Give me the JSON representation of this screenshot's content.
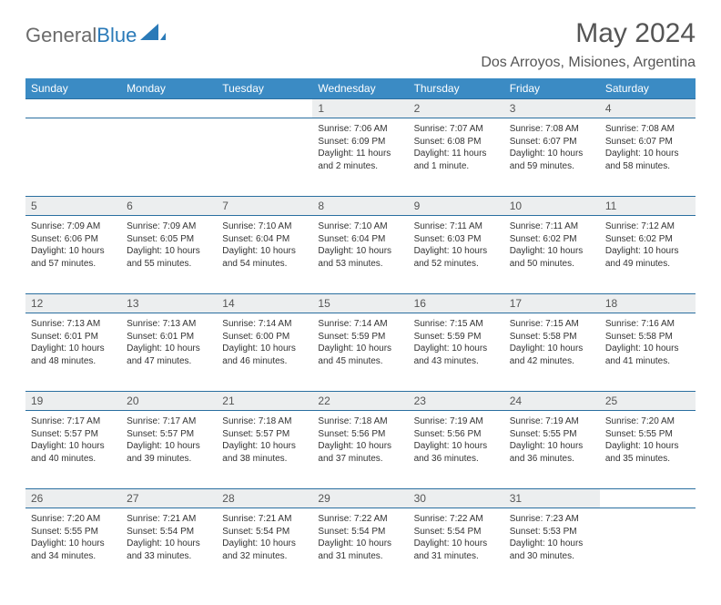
{
  "brand": {
    "part1": "General",
    "part2": "Blue"
  },
  "title": "May 2024",
  "location": "Dos Arroyos, Misiones, Argentina",
  "dayNames": [
    "Sunday",
    "Monday",
    "Tuesday",
    "Wednesday",
    "Thursday",
    "Friday",
    "Saturday"
  ],
  "colors": {
    "header_bg": "#3b8bc4",
    "header_text": "#ffffff",
    "daynum_bg": "#eceeef",
    "border": "#2a6fa0",
    "brand_gray": "#6b6b6b",
    "brand_blue": "#2a7ab8",
    "body_text": "#333333"
  },
  "firstWeekday": 3,
  "days": [
    {
      "n": 1,
      "sr": "7:06 AM",
      "ss": "6:09 PM",
      "dl": "11 hours and 2 minutes."
    },
    {
      "n": 2,
      "sr": "7:07 AM",
      "ss": "6:08 PM",
      "dl": "11 hours and 1 minute."
    },
    {
      "n": 3,
      "sr": "7:08 AM",
      "ss": "6:07 PM",
      "dl": "10 hours and 59 minutes."
    },
    {
      "n": 4,
      "sr": "7:08 AM",
      "ss": "6:07 PM",
      "dl": "10 hours and 58 minutes."
    },
    {
      "n": 5,
      "sr": "7:09 AM",
      "ss": "6:06 PM",
      "dl": "10 hours and 57 minutes."
    },
    {
      "n": 6,
      "sr": "7:09 AM",
      "ss": "6:05 PM",
      "dl": "10 hours and 55 minutes."
    },
    {
      "n": 7,
      "sr": "7:10 AM",
      "ss": "6:04 PM",
      "dl": "10 hours and 54 minutes."
    },
    {
      "n": 8,
      "sr": "7:10 AM",
      "ss": "6:04 PM",
      "dl": "10 hours and 53 minutes."
    },
    {
      "n": 9,
      "sr": "7:11 AM",
      "ss": "6:03 PM",
      "dl": "10 hours and 52 minutes."
    },
    {
      "n": 10,
      "sr": "7:11 AM",
      "ss": "6:02 PM",
      "dl": "10 hours and 50 minutes."
    },
    {
      "n": 11,
      "sr": "7:12 AM",
      "ss": "6:02 PM",
      "dl": "10 hours and 49 minutes."
    },
    {
      "n": 12,
      "sr": "7:13 AM",
      "ss": "6:01 PM",
      "dl": "10 hours and 48 minutes."
    },
    {
      "n": 13,
      "sr": "7:13 AM",
      "ss": "6:01 PM",
      "dl": "10 hours and 47 minutes."
    },
    {
      "n": 14,
      "sr": "7:14 AM",
      "ss": "6:00 PM",
      "dl": "10 hours and 46 minutes."
    },
    {
      "n": 15,
      "sr": "7:14 AM",
      "ss": "5:59 PM",
      "dl": "10 hours and 45 minutes."
    },
    {
      "n": 16,
      "sr": "7:15 AM",
      "ss": "5:59 PM",
      "dl": "10 hours and 43 minutes."
    },
    {
      "n": 17,
      "sr": "7:15 AM",
      "ss": "5:58 PM",
      "dl": "10 hours and 42 minutes."
    },
    {
      "n": 18,
      "sr": "7:16 AM",
      "ss": "5:58 PM",
      "dl": "10 hours and 41 minutes."
    },
    {
      "n": 19,
      "sr": "7:17 AM",
      "ss": "5:57 PM",
      "dl": "10 hours and 40 minutes."
    },
    {
      "n": 20,
      "sr": "7:17 AM",
      "ss": "5:57 PM",
      "dl": "10 hours and 39 minutes."
    },
    {
      "n": 21,
      "sr": "7:18 AM",
      "ss": "5:57 PM",
      "dl": "10 hours and 38 minutes."
    },
    {
      "n": 22,
      "sr": "7:18 AM",
      "ss": "5:56 PM",
      "dl": "10 hours and 37 minutes."
    },
    {
      "n": 23,
      "sr": "7:19 AM",
      "ss": "5:56 PM",
      "dl": "10 hours and 36 minutes."
    },
    {
      "n": 24,
      "sr": "7:19 AM",
      "ss": "5:55 PM",
      "dl": "10 hours and 36 minutes."
    },
    {
      "n": 25,
      "sr": "7:20 AM",
      "ss": "5:55 PM",
      "dl": "10 hours and 35 minutes."
    },
    {
      "n": 26,
      "sr": "7:20 AM",
      "ss": "5:55 PM",
      "dl": "10 hours and 34 minutes."
    },
    {
      "n": 27,
      "sr": "7:21 AM",
      "ss": "5:54 PM",
      "dl": "10 hours and 33 minutes."
    },
    {
      "n": 28,
      "sr": "7:21 AM",
      "ss": "5:54 PM",
      "dl": "10 hours and 32 minutes."
    },
    {
      "n": 29,
      "sr": "7:22 AM",
      "ss": "5:54 PM",
      "dl": "10 hours and 31 minutes."
    },
    {
      "n": 30,
      "sr": "7:22 AM",
      "ss": "5:54 PM",
      "dl": "10 hours and 31 minutes."
    },
    {
      "n": 31,
      "sr": "7:23 AM",
      "ss": "5:53 PM",
      "dl": "10 hours and 30 minutes."
    }
  ],
  "labels": {
    "sunrise": "Sunrise:",
    "sunset": "Sunset:",
    "daylight": "Daylight:"
  }
}
